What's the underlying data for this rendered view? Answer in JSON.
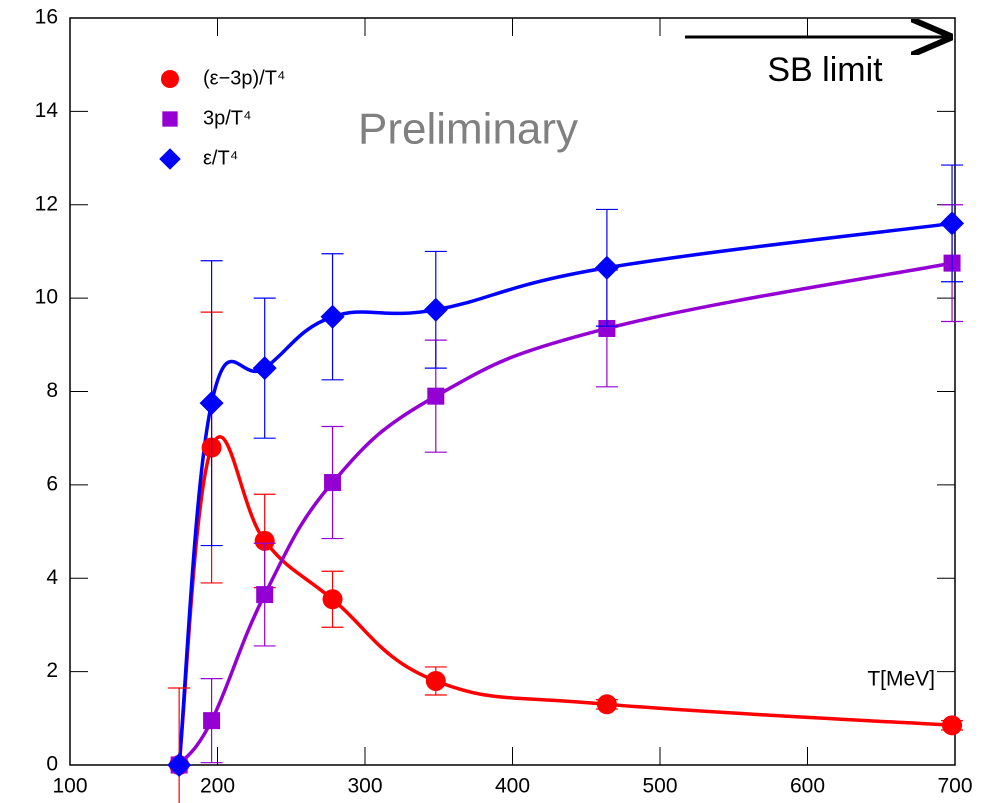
{
  "chart_data": {
    "type": "line",
    "x": [
      174,
      196,
      232,
      278,
      348,
      464,
      698
    ],
    "series": [
      {
        "name": "(ε−3p)/T⁴",
        "color": "#ff0000",
        "marker": "circle",
        "values": [
          0,
          6.8,
          4.8,
          3.55,
          1.8,
          1.3,
          0.85
        ],
        "errors": [
          1.65,
          2.9,
          1.0,
          0.6,
          0.3,
          0.1,
          0.1
        ]
      },
      {
        "name": "3p/T⁴",
        "color": "#9400d3",
        "marker": "square",
        "values": [
          0,
          0.95,
          3.65,
          6.05,
          7.9,
          9.35,
          10.75
        ],
        "errors": [
          0,
          0.9,
          1.1,
          1.2,
          1.2,
          1.25,
          1.25
        ]
      },
      {
        "name": "ε/T⁴",
        "color": "#0000ff",
        "marker": "diamond",
        "values": [
          0,
          7.75,
          8.5,
          9.6,
          9.75,
          10.65,
          11.6
        ],
        "errors": [
          0,
          3.05,
          1.5,
          1.35,
          1.25,
          1.25,
          1.25
        ]
      }
    ],
    "xlim": [
      100,
      700
    ],
    "ylim": [
      0,
      16
    ],
    "xticks": [
      100,
      200,
      300,
      400,
      500,
      600,
      700
    ],
    "yticks": [
      0,
      2,
      4,
      6,
      8,
      10,
      12,
      14,
      16
    ],
    "x_label": "T[MeV]",
    "annotations": [
      "SB limit",
      "Preliminary"
    ]
  }
}
